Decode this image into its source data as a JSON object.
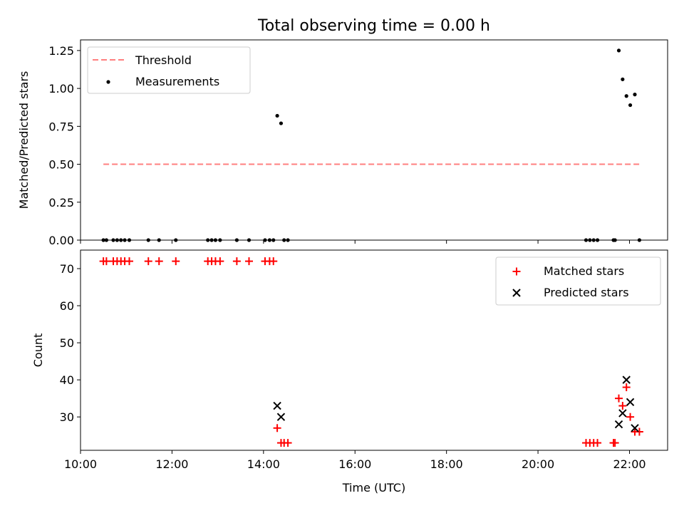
{
  "title": "Total observing time = 0.00 h",
  "chart_data": [
    {
      "type": "scatter",
      "panel": "top",
      "title": "Total observing time = 0.00 h",
      "xlabel": "",
      "ylabel": "Matched/Predicted stars",
      "xlim": [
        "10:00",
        "22:50"
      ],
      "ylim": [
        0,
        1.32
      ],
      "yticks": [
        0.0,
        0.25,
        0.5,
        0.75,
        1.0,
        1.25
      ],
      "ytick_labels": [
        "0.00",
        "0.25",
        "0.50",
        "0.75",
        "1.00",
        "1.25"
      ],
      "legend_position": "upper-left",
      "threshold": {
        "name": "Threshold",
        "value": 0.5,
        "x_start": "10:30",
        "x_end": "22:13",
        "color": "#ff7f7f",
        "style": "dashed"
      },
      "series": [
        {
          "name": "Measurements",
          "color": "#000000",
          "marker": "dot",
          "points": [
            {
              "x": "10:30",
              "y": 0.0
            },
            {
              "x": "10:34",
              "y": 0.0
            },
            {
              "x": "10:43",
              "y": 0.0
            },
            {
              "x": "10:48",
              "y": 0.0
            },
            {
              "x": "10:53",
              "y": 0.0
            },
            {
              "x": "10:58",
              "y": 0.0
            },
            {
              "x": "11:04",
              "y": 0.0
            },
            {
              "x": "11:29",
              "y": 0.0
            },
            {
              "x": "11:43",
              "y": 0.0
            },
            {
              "x": "12:05",
              "y": 0.0
            },
            {
              "x": "12:47",
              "y": 0.0
            },
            {
              "x": "12:52",
              "y": 0.0
            },
            {
              "x": "12:57",
              "y": 0.0
            },
            {
              "x": "13:03",
              "y": 0.0
            },
            {
              "x": "13:25",
              "y": 0.0
            },
            {
              "x": "13:41",
              "y": 0.0
            },
            {
              "x": "14:02",
              "y": 0.0
            },
            {
              "x": "14:08",
              "y": 0.0
            },
            {
              "x": "14:13",
              "y": 0.0
            },
            {
              "x": "14:18",
              "y": 0.82
            },
            {
              "x": "14:23",
              "y": 0.77
            },
            {
              "x": "14:27",
              "y": 0.0
            },
            {
              "x": "14:32",
              "y": 0.0
            },
            {
              "x": "21:03",
              "y": 0.0
            },
            {
              "x": "21:08",
              "y": 0.0
            },
            {
              "x": "21:13",
              "y": 0.0
            },
            {
              "x": "21:18",
              "y": 0.0
            },
            {
              "x": "21:39",
              "y": 0.0
            },
            {
              "x": "21:41",
              "y": 0.0
            },
            {
              "x": "21:46",
              "y": 1.25
            },
            {
              "x": "21:51",
              "y": 1.06
            },
            {
              "x": "21:56",
              "y": 0.95
            },
            {
              "x": "22:01",
              "y": 0.89
            },
            {
              "x": "22:07",
              "y": 0.96
            },
            {
              "x": "22:13",
              "y": 0.0
            }
          ]
        }
      ]
    },
    {
      "type": "scatter",
      "panel": "bottom",
      "title": "",
      "xlabel": "Time (UTC)",
      "ylabel": "Count",
      "xlim": [
        "10:00",
        "22:50"
      ],
      "ylim": [
        21,
        75
      ],
      "xticks": [
        "10:00",
        "12:00",
        "14:00",
        "16:00",
        "18:00",
        "20:00",
        "22:00"
      ],
      "yticks": [
        30,
        40,
        50,
        60,
        70
      ],
      "legend_position": "upper-right",
      "series": [
        {
          "name": "Matched stars",
          "color": "#ff0000",
          "marker": "plus",
          "points": [
            {
              "x": "10:30",
              "y": 72
            },
            {
              "x": "10:34",
              "y": 72
            },
            {
              "x": "10:43",
              "y": 72
            },
            {
              "x": "10:48",
              "y": 72
            },
            {
              "x": "10:53",
              "y": 72
            },
            {
              "x": "10:58",
              "y": 72
            },
            {
              "x": "11:04",
              "y": 72
            },
            {
              "x": "11:29",
              "y": 72
            },
            {
              "x": "11:43",
              "y": 72
            },
            {
              "x": "12:05",
              "y": 72
            },
            {
              "x": "12:47",
              "y": 72
            },
            {
              "x": "12:52",
              "y": 72
            },
            {
              "x": "12:57",
              "y": 72
            },
            {
              "x": "13:03",
              "y": 72
            },
            {
              "x": "13:25",
              "y": 72
            },
            {
              "x": "13:41",
              "y": 72
            },
            {
              "x": "14:02",
              "y": 72
            },
            {
              "x": "14:08",
              "y": 72
            },
            {
              "x": "14:13",
              "y": 72
            },
            {
              "x": "14:18",
              "y": 27
            },
            {
              "x": "14:23",
              "y": 23
            },
            {
              "x": "14:27",
              "y": 23
            },
            {
              "x": "14:32",
              "y": 23
            },
            {
              "x": "21:03",
              "y": 23
            },
            {
              "x": "21:08",
              "y": 23
            },
            {
              "x": "21:13",
              "y": 23
            },
            {
              "x": "21:18",
              "y": 23
            },
            {
              "x": "21:39",
              "y": 23
            },
            {
              "x": "21:41",
              "y": 23
            },
            {
              "x": "21:46",
              "y": 35
            },
            {
              "x": "21:51",
              "y": 33
            },
            {
              "x": "21:56",
              "y": 38
            },
            {
              "x": "22:01",
              "y": 30
            },
            {
              "x": "22:07",
              "y": 26
            },
            {
              "x": "22:13",
              "y": 26
            }
          ]
        },
        {
          "name": "Predicted stars",
          "color": "#000000",
          "marker": "x",
          "points": [
            {
              "x": "14:18",
              "y": 33
            },
            {
              "x": "14:23",
              "y": 30
            },
            {
              "x": "21:46",
              "y": 28
            },
            {
              "x": "21:51",
              "y": 31
            },
            {
              "x": "21:56",
              "y": 40
            },
            {
              "x": "22:01",
              "y": 34
            },
            {
              "x": "22:07",
              "y": 27
            }
          ]
        }
      ]
    }
  ]
}
